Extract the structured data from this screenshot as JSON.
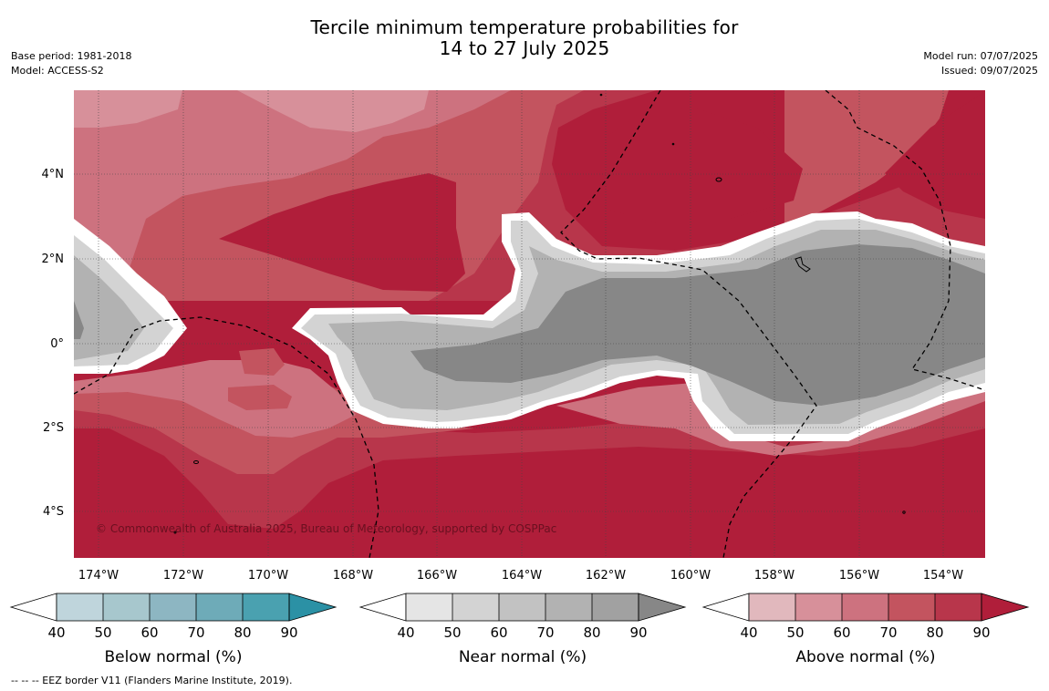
{
  "title": {
    "line1": "Tercile minimum temperature probabilities for",
    "line2": "14 to 27 July 2025"
  },
  "meta_left": {
    "base_period": "Base period: 1981-2018",
    "model": "Model: ACCESS-S2"
  },
  "meta_right": {
    "model_run": "Model run: 07/07/2025",
    "issued": "Issued: 09/07/2025"
  },
  "map": {
    "lat_labels": [
      "4°N",
      "2°N",
      "0°",
      "2°S",
      "4°S"
    ],
    "lat_values": [
      4,
      2,
      0,
      -2,
      -4
    ],
    "lon_labels": [
      "174°W",
      "172°W",
      "170°W",
      "168°W",
      "166°W",
      "164°W",
      "162°W",
      "160°W",
      "158°W",
      "156°W",
      "154°W"
    ],
    "lon_values": [
      -174,
      -172,
      -170,
      -168,
      -166,
      -164,
      -162,
      -160,
      -158,
      -156,
      -154
    ],
    "lon_range": [
      -174.6,
      -153.0
    ],
    "lat_range": [
      -5.0,
      6.0
    ],
    "copyright": "© Commonwealth of Australia 2025, Bureau of Meteorology, supported by COSPPac"
  },
  "colorbars": [
    {
      "title": "Below normal (%)",
      "ticks": [
        "40",
        "50",
        "60",
        "70",
        "80",
        "90"
      ],
      "colors": [
        "#ffffff",
        "#bfd5dc",
        "#a7c7cd",
        "#8db6c2",
        "#6eabb8",
        "#4aa1b0",
        "#2b91a5"
      ]
    },
    {
      "title": "Near normal (%)",
      "ticks": [
        "40",
        "50",
        "60",
        "70",
        "80",
        "90"
      ],
      "colors": [
        "#ffffff",
        "#e5e5e5",
        "#d3d3d3",
        "#c2c2c2",
        "#b2b2b2",
        "#a1a1a1",
        "#878787"
      ]
    },
    {
      "title": "Above normal (%)",
      "ticks": [
        "40",
        "50",
        "60",
        "70",
        "80",
        "90"
      ],
      "colors": [
        "#ffffff",
        "#e1b8bd",
        "#d7909a",
        "#cd727f",
        "#c3545f",
        "#b8364b",
        "#b01e3a"
      ]
    }
  ],
  "footer": "-- -- -- EEZ border V11 (Flanders Marine Institute, 2019)."
}
